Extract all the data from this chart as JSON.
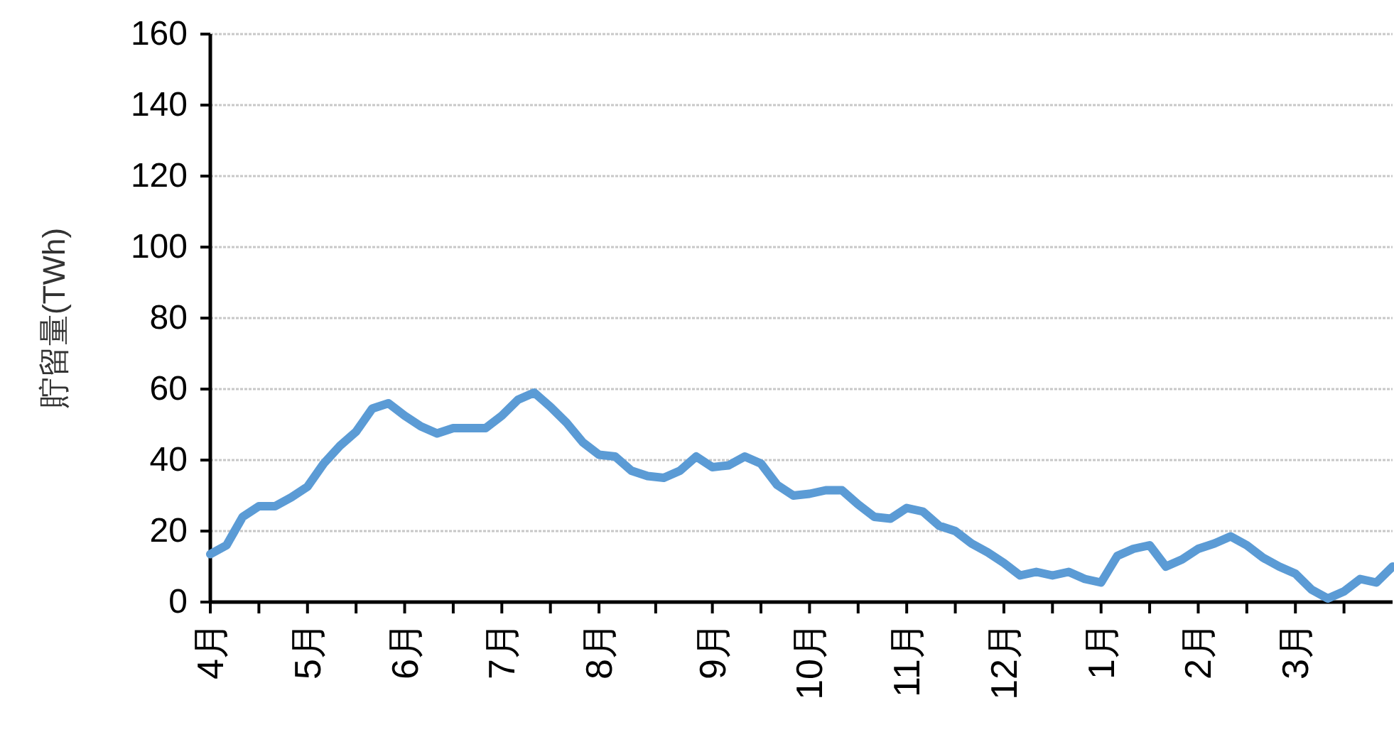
{
  "chart_data": {
    "type": "line",
    "ylabel": "貯留量(TWh)",
    "categories": [
      "4月",
      null,
      null,
      null,
      null,
      null,
      "5月",
      null,
      null,
      null,
      null,
      null,
      "6月",
      null,
      null,
      null,
      null,
      null,
      "7月",
      null,
      null,
      null,
      null,
      null,
      "8月",
      null,
      null,
      null,
      null,
      null,
      null,
      "9月",
      null,
      null,
      null,
      null,
      null,
      "10月",
      null,
      null,
      null,
      null,
      null,
      "11月",
      null,
      null,
      null,
      null,
      null,
      "12月",
      null,
      null,
      null,
      null,
      null,
      "1月",
      null,
      null,
      null,
      null,
      null,
      "2月",
      null,
      null,
      null,
      null,
      null,
      "3月",
      null,
      null,
      null,
      null,
      null,
      null
    ],
    "series": [
      {
        "color": "#5b9bd5",
        "values": [
          13.5,
          16,
          24,
          27,
          27,
          29.5,
          32.5,
          39,
          44,
          48,
          54.5,
          56,
          52.5,
          49.5,
          47.5,
          49,
          49,
          49,
          52.5,
          57,
          59,
          55,
          50.5,
          45,
          41.5,
          41,
          37,
          35.5,
          35,
          37,
          41,
          38,
          38.5,
          41,
          39,
          33,
          30,
          30.5,
          31.5,
          31.5,
          27.5,
          24,
          23.5,
          26.5,
          25.5,
          21.5,
          20,
          16.5,
          14,
          11,
          7.5,
          8.5,
          7.5,
          8.5,
          6.5,
          5.5,
          13,
          15,
          16,
          10,
          12,
          15,
          16.5,
          18.5,
          16,
          12.5,
          10,
          8,
          3.5,
          1,
          3,
          6.5,
          5.5,
          10
        ]
      }
    ],
    "ylim": [
      0,
      160
    ],
    "yticks": [
      0,
      20,
      40,
      60,
      80,
      100,
      120,
      140,
      160
    ],
    "grid": "y",
    "marker": "none",
    "line_style": "solid"
  }
}
